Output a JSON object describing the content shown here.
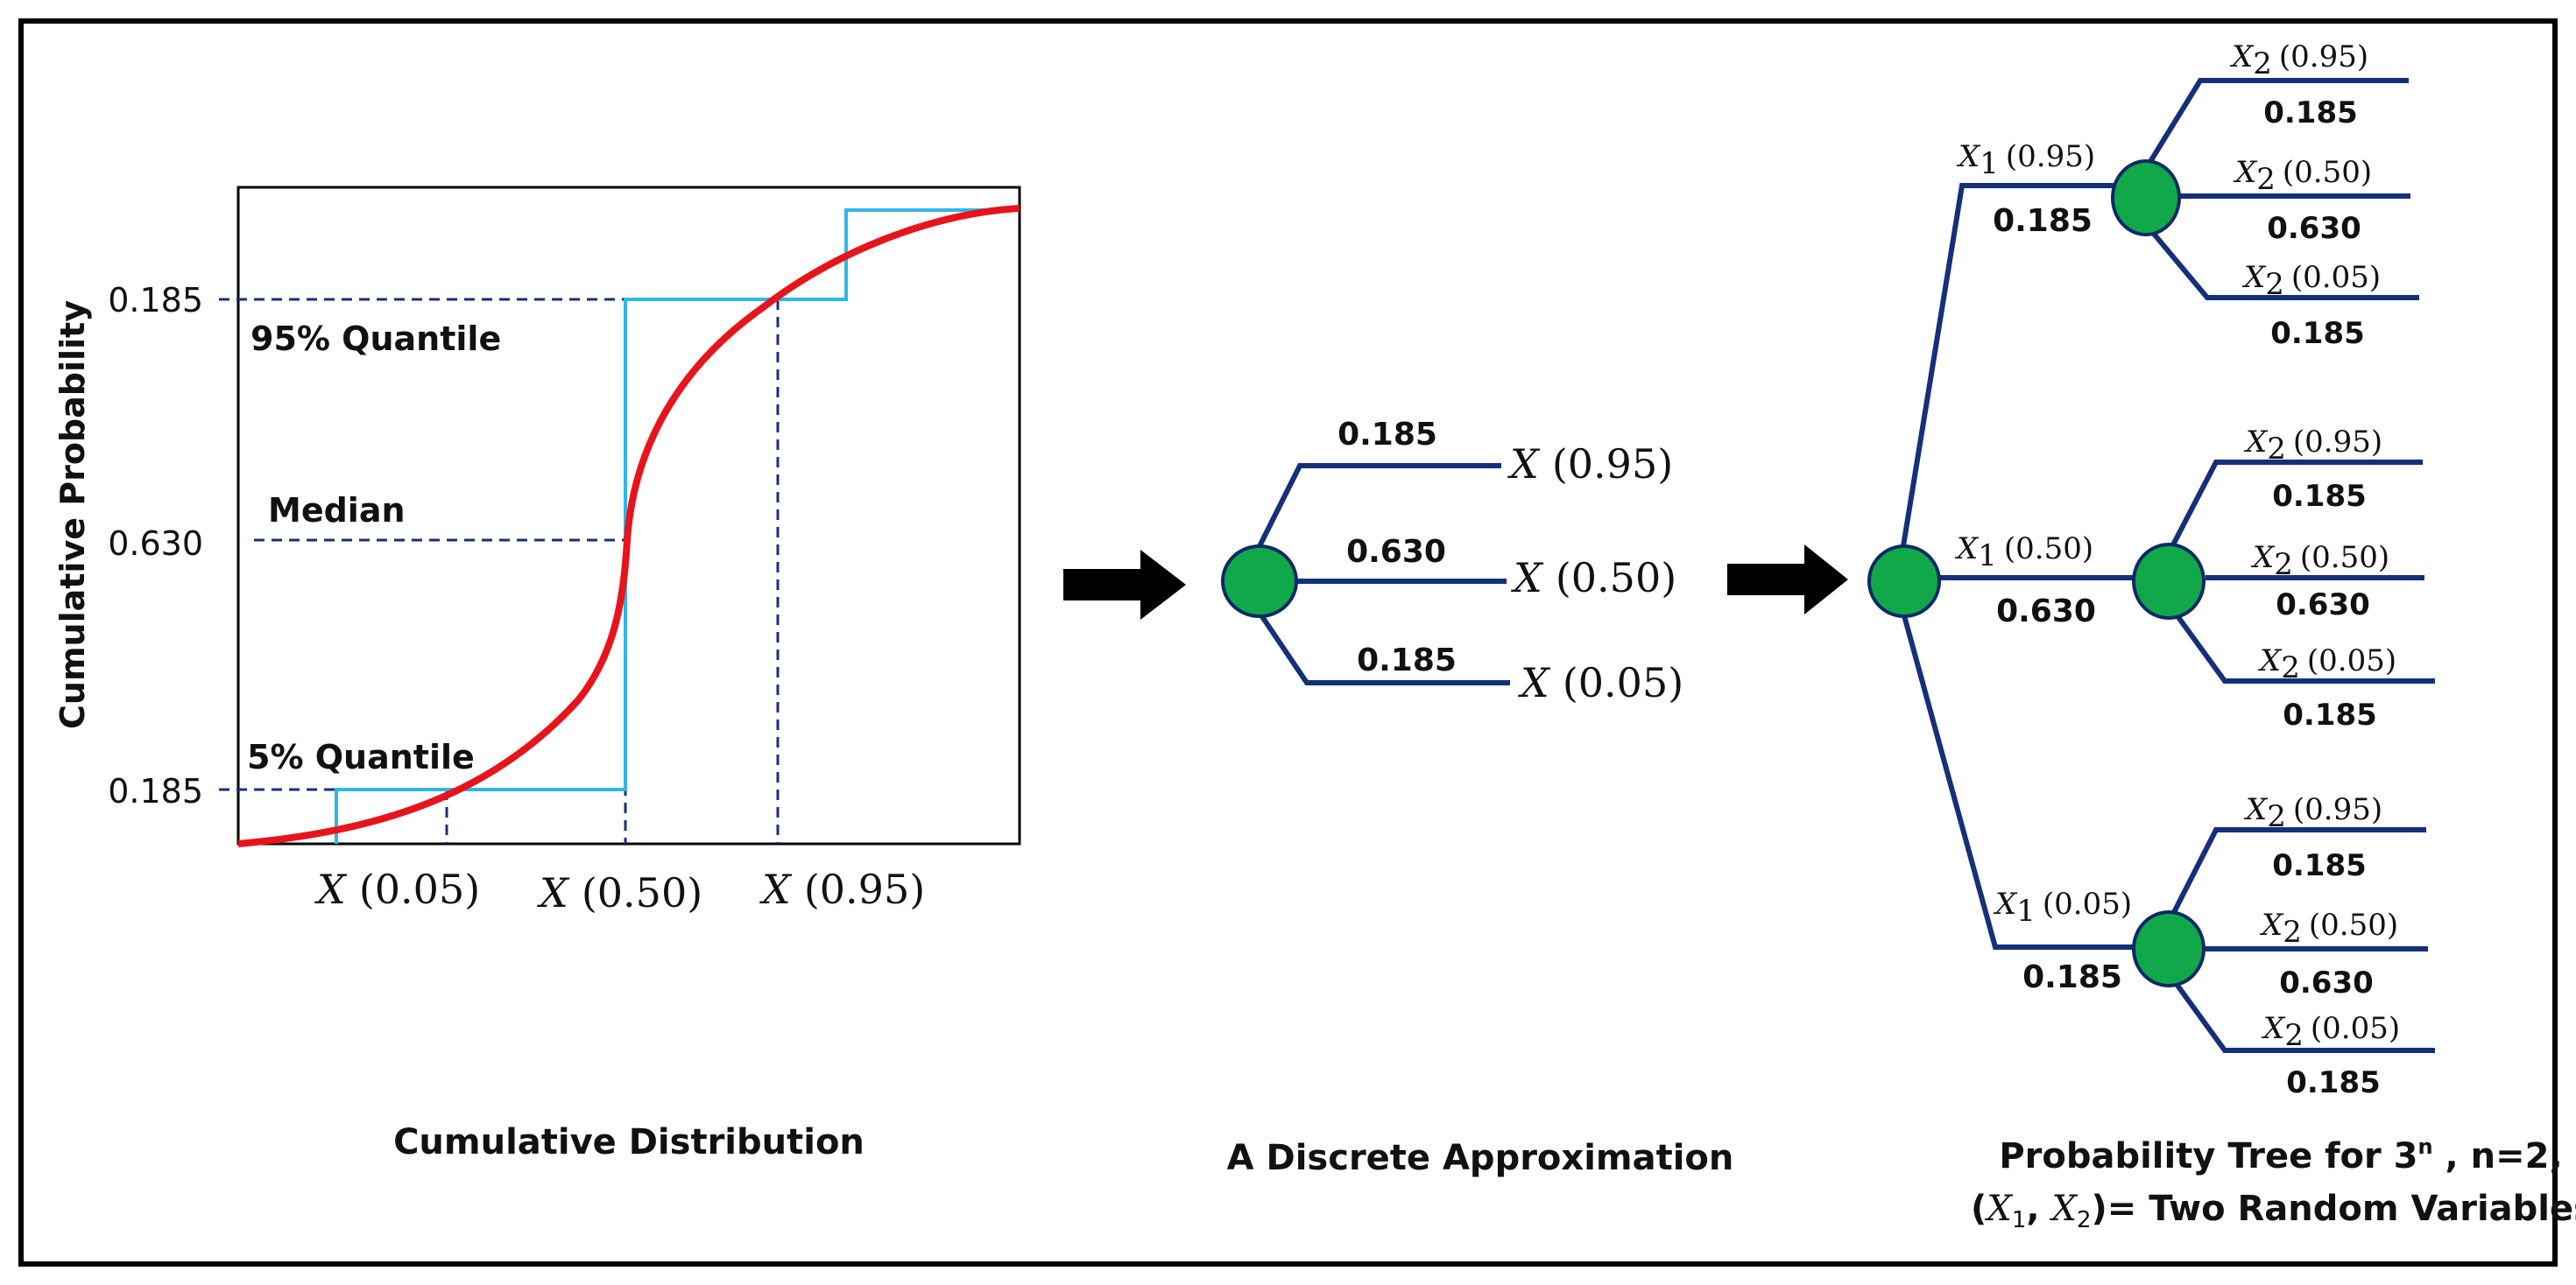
{
  "cdf_panel": {
    "y_axis_label": "Cumulative Probability",
    "y_ticks": [
      "0.185",
      "0.630",
      "0.185"
    ],
    "annotations": {
      "q95": "95% Quantile",
      "median": "Median",
      "q05": "5% Quantile"
    },
    "x_labels": [
      {
        "var": "X",
        "arg": "(0.05)"
      },
      {
        "var": "X",
        "arg": "(0.50)"
      },
      {
        "var": "X",
        "arg": "(0.95)"
      }
    ],
    "caption": "Cumulative Distribution",
    "colors": {
      "curve": "#e8141b",
      "steps": "#31b6e8",
      "dashes": "#1a2f7a"
    }
  },
  "discrete_panel": {
    "branches": [
      {
        "prob": "0.185",
        "var": "X",
        "arg": "(0.95)"
      },
      {
        "prob": "0.630",
        "var": "X",
        "arg": "(0.50)"
      },
      {
        "prob": "0.185",
        "var": "X",
        "arg": "(0.05)"
      }
    ],
    "caption": "A Discrete Approximation"
  },
  "tree_panel": {
    "first_level": [
      {
        "var": "X",
        "sub": "1",
        "arg": "(0.95)",
        "prob": "0.185",
        "children": [
          {
            "var": "X",
            "sub": "2",
            "arg": "(0.95)",
            "prob": "0.185"
          },
          {
            "var": "X",
            "sub": "2",
            "arg": "(0.50)",
            "prob": "0.630"
          },
          {
            "var": "X",
            "sub": "2",
            "arg": "(0.05)",
            "prob": "0.185"
          }
        ]
      },
      {
        "var": "X",
        "sub": "1",
        "arg": "(0.50)",
        "prob": "0.630",
        "children": [
          {
            "var": "X",
            "sub": "2",
            "arg": "(0.95)",
            "prob": "0.185"
          },
          {
            "var": "X",
            "sub": "2",
            "arg": "(0.50)",
            "prob": "0.630"
          },
          {
            "var": "X",
            "sub": "2",
            "arg": "(0.05)",
            "prob": "0.185"
          }
        ]
      },
      {
        "var": "X",
        "sub": "1",
        "arg": "(0.05)",
        "prob": "0.185",
        "children": [
          {
            "var": "X",
            "sub": "2",
            "arg": "(0.95)",
            "prob": "0.185"
          },
          {
            "var": "X",
            "sub": "2",
            "arg": "(0.50)",
            "prob": "0.630"
          },
          {
            "var": "X",
            "sub": "2",
            "arg": "(0.05)",
            "prob": "0.185"
          }
        ]
      }
    ],
    "caption_line1_prefix": "Probability Tree for 3",
    "caption_line1_sup": "n",
    "caption_line1_suffix": " , n=2,",
    "caption_line2_open": "(",
    "caption_line2_var1": "X",
    "caption_line2_sub1": "1",
    "caption_line2_comma": ", ",
    "caption_line2_var2": "X",
    "caption_line2_sub2": "2",
    "caption_line2_suffix": ")= Two Random Variables"
  },
  "colors": {
    "node_fill": "#11a84a",
    "branch": "#15307a",
    "arrow": "#000000"
  }
}
